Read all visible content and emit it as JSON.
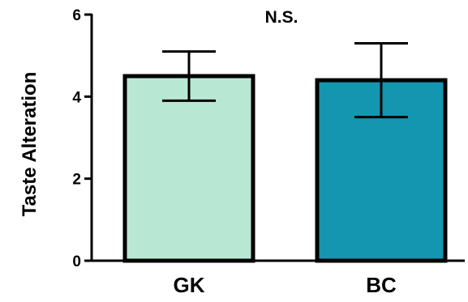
{
  "chart_data": {
    "type": "bar",
    "title": "",
    "xlabel": "",
    "ylabel": "Taste Alteration",
    "ylim": [
      0,
      6
    ],
    "y_ticks": [
      0,
      2,
      4,
      6
    ],
    "y_tick_labels": [
      "0",
      "2",
      "4",
      "6"
    ],
    "categories": [
      "GK",
      "BC"
    ],
    "values": [
      4.5,
      4.4
    ],
    "error_upper": [
      5.1,
      5.3
    ],
    "error_lower": [
      3.9,
      3.5
    ],
    "bar_colors": [
      "#b8e8d4",
      "#1496b0"
    ],
    "annotation": "N.S.",
    "grid": false,
    "legend": false
  }
}
